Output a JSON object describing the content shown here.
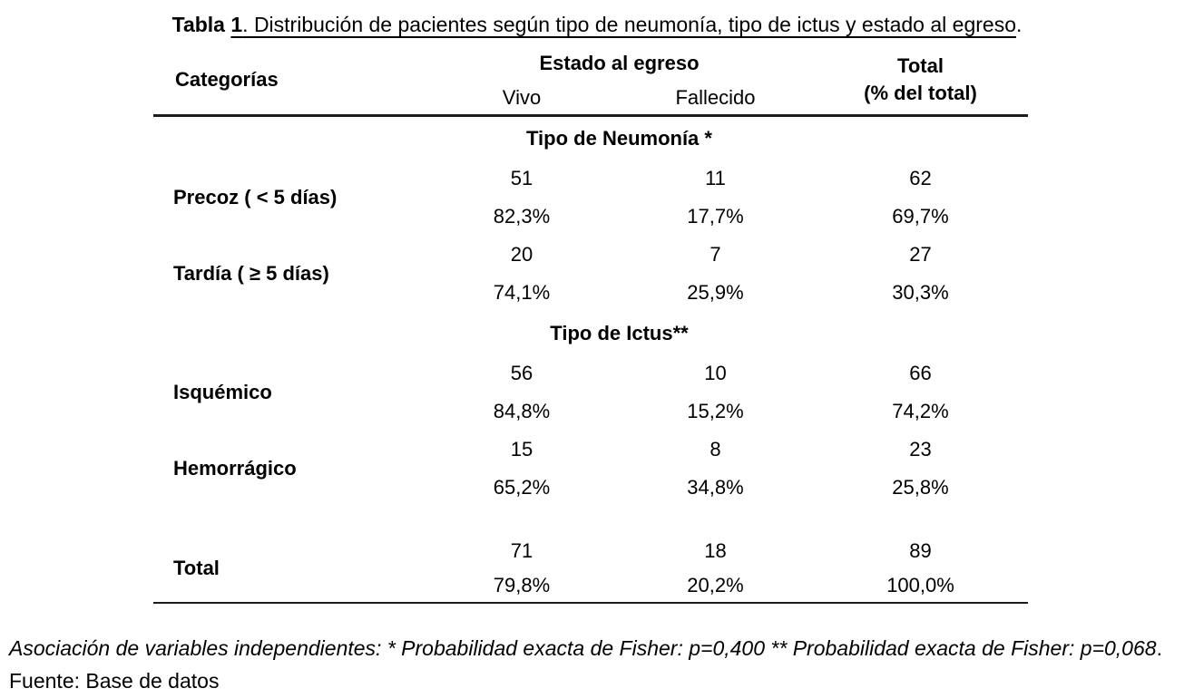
{
  "title": {
    "bold_plain": "Tabla ",
    "bold_underlined": "1",
    "rest_underlined": ". Distribución de pacientes según tipo de neumonía, tipo de ictus y estado al egreso",
    "trailing": "."
  },
  "header": {
    "categories": "Categorías",
    "group": "Estado al egreso",
    "sub": [
      "Vivo",
      "Fallecido"
    ],
    "total_line1": "Total",
    "total_line2": "(% del total)"
  },
  "sections": [
    {
      "heading": "Tipo de Neumonía *",
      "rows": [
        {
          "label": "Precoz ( < 5 días)",
          "vivo_n": "51",
          "fallecido_n": "11",
          "total_n": "62",
          "vivo_pct": "82,3%",
          "fallecido_pct": "17,7%",
          "total_pct": "69,7%"
        },
        {
          "label": "Tardía ( ≥ 5 días)",
          "vivo_n": "20",
          "fallecido_n": "7",
          "total_n": "27",
          "vivo_pct": "74,1%",
          "fallecido_pct": "25,9%",
          "total_pct": "30,3%"
        }
      ]
    },
    {
      "heading": "Tipo de Ictus**",
      "rows": [
        {
          "label": "Isquémico",
          "vivo_n": "56",
          "fallecido_n": "10",
          "total_n": "66",
          "vivo_pct": "84,8%",
          "fallecido_pct": "15,2%",
          "total_pct": "74,2%"
        },
        {
          "label": "Hemorrágico",
          "vivo_n": "15",
          "fallecido_n": "8",
          "total_n": "23",
          "vivo_pct": "65,2%",
          "fallecido_pct": "34,8%",
          "total_pct": "25,8%"
        }
      ]
    }
  ],
  "total_row": {
    "label": "Total",
    "vivo_n": "71",
    "fallecido_n": "18",
    "total_n": "89",
    "vivo_pct": "79,8%",
    "fallecido_pct": "20,2%",
    "total_pct": "100,0%"
  },
  "footnote": {
    "italic": "Asociación de variables independientes: * Probabilidad exacta de Fisher: p=0,400 ** Probabilidad exacta de Fisher: p=0,068",
    "regular": ". Fuente: Base de datos"
  },
  "colors": {
    "text": "#000000",
    "rule": "#1b1b1b",
    "background": "#ffffff"
  }
}
